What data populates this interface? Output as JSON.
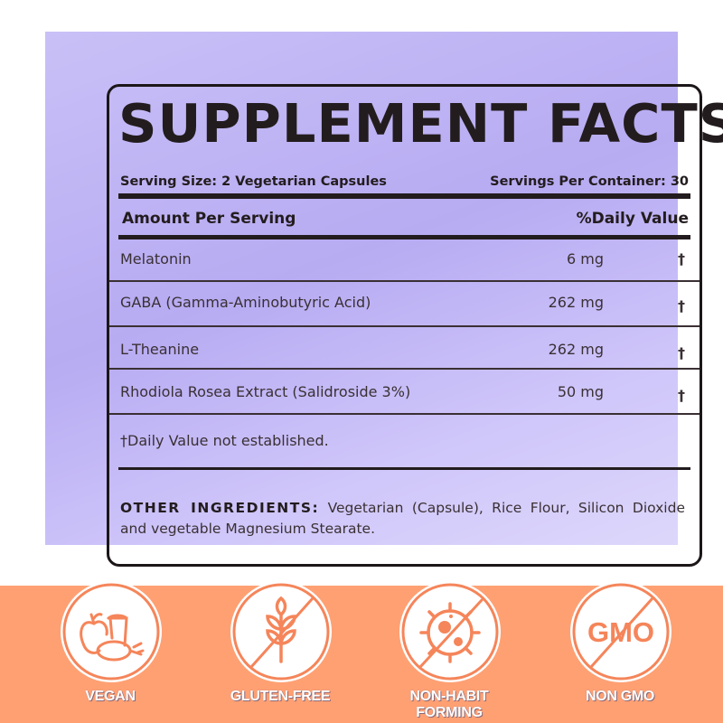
{
  "label": {
    "title": "SUPPLEMENT FACTS",
    "serving_size": "Serving Size: 2 Vegetarian  Capsules",
    "servings_per_container": "Servings Per Container: 30",
    "amount_header": "Amount Per Serving",
    "dv_header": "%Daily Value",
    "rows": [
      {
        "name": "Melatonin",
        "amount": "6 mg",
        "dv": "†"
      },
      {
        "name": "GABA (Gamma-Aminobutyric Acid)",
        "amount": "262 mg",
        "dv": "†"
      },
      {
        "name": "L-Theanine",
        "amount": "262 mg",
        "dv": "†"
      },
      {
        "name": "Rhodiola Rosea Extract (Salidroside 3%)",
        "amount": "50 mg",
        "dv": "†"
      }
    ],
    "footnote": "†Daily Value not established.",
    "other_label": "OTHER INGREDIENTS:",
    "other_text": " Vegetarian (Capsule), Rice Flour, Silicon Dioxide and vegetable Magnesium Stearate."
  },
  "badges": [
    {
      "label": "VEGAN",
      "icon": "vegan-food-icon"
    },
    {
      "label": "GLUTEN-FREE",
      "icon": "no-wheat-icon"
    },
    {
      "label": "NON-HABIT FORMING",
      "icon": "no-virus-icon"
    },
    {
      "label": "NON GMO",
      "icon": "no-gmo-icon",
      "icon_text": "GMO"
    }
  ],
  "colors": {
    "panel": "#bfb4f5",
    "band": "#ffa073",
    "icon": "#f5855a",
    "ink": "#231c1e"
  }
}
